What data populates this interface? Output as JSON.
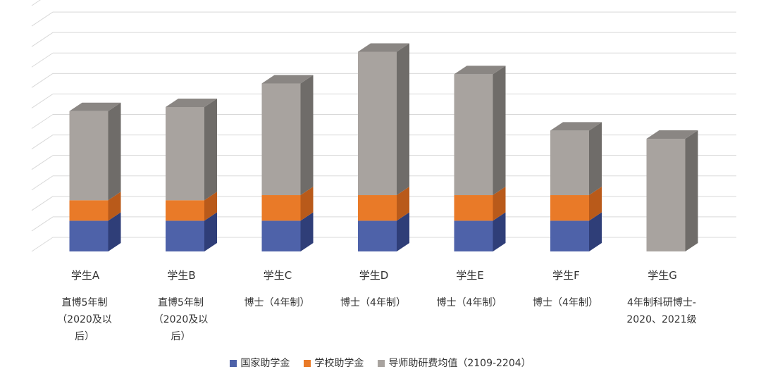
{
  "chart_data": {
    "type": "bar",
    "stacked": true,
    "three_d": true,
    "categories": [
      "学生A",
      "学生B",
      "学生C",
      "学生D",
      "学生E",
      "学生F",
      "学生G"
    ],
    "category_notes": [
      [
        "直博5年制",
        "（2020及以",
        "后）"
      ],
      [
        "直博5年制",
        "（2020及以",
        "后）"
      ],
      [
        "博士（4年制）"
      ],
      [
        "博士（4年制）"
      ],
      [
        "博士（4年制）"
      ],
      [
        "博士（4年制）"
      ],
      [
        "4年制科研博士-",
        "2020、2021级"
      ]
    ],
    "series": [
      {
        "name": "国家助学金",
        "color": "#4E62A9",
        "side_color": "#2F3E78",
        "values": [
          1.5,
          1.5,
          1.5,
          1.5,
          1.5,
          1.5,
          0
        ]
      },
      {
        "name": "学校助学金",
        "color": "#E97A28",
        "side_color": "#B95A1A",
        "values": [
          1.0,
          1.0,
          1.25,
          1.25,
          1.25,
          1.25,
          0
        ]
      },
      {
        "name": "导师助研费均值（2109-2204）",
        "color": "#A8A39F",
        "side_color": "#6F6C69",
        "values": [
          4.35,
          4.55,
          5.45,
          7.0,
          5.9,
          3.15,
          5.5
        ]
      }
    ],
    "ylim": [
      0,
      12
    ],
    "grid": true,
    "legend_position": "bottom"
  }
}
